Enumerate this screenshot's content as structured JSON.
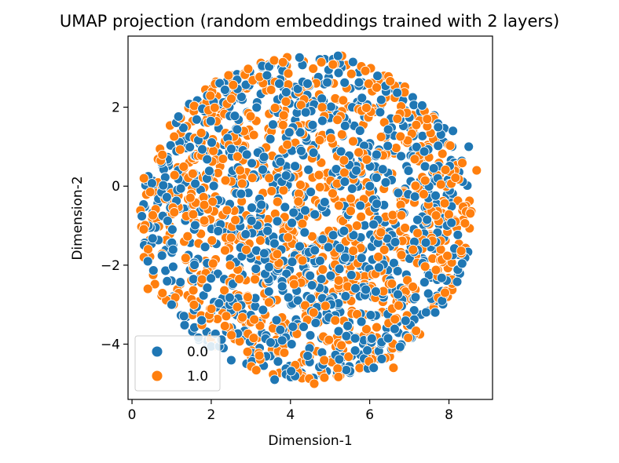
{
  "chart_data": {
    "type": "scatter",
    "title": "UMAP projection (random embeddings trained with 2 layers)",
    "xlabel": "Dimension-1",
    "ylabel": "Dimension-2",
    "xlim": [
      -0.1,
      9.1
    ],
    "ylim": [
      -5.4,
      3.8
    ],
    "xticks": [
      0,
      2,
      4,
      6,
      8
    ],
    "yticks": [
      2,
      0,
      -2,
      -4
    ],
    "grid": false,
    "legend_position": "lower-left",
    "disc": {
      "center": [
        4.4,
        -0.8
      ],
      "radius": 4.2,
      "n_per_series": 950
    },
    "series": [
      {
        "name": "0.0",
        "color": "#1f77b4"
      },
      {
        "name": "1.0",
        "color": "#ff7f0e"
      }
    ],
    "sample_points": [
      {
        "series": "1.0",
        "x": 8.7,
        "y": 0.4
      },
      {
        "series": "1.0",
        "x": 0.3,
        "y": -1.8
      },
      {
        "series": "1.0",
        "x": 0.3,
        "y": 0.2
      },
      {
        "series": "0.0",
        "x": 8.5,
        "y": 1.0
      },
      {
        "series": "0.0",
        "x": 8.1,
        "y": 1.4
      },
      {
        "series": "1.0",
        "x": 4.6,
        "y": -5.0
      },
      {
        "series": "0.0",
        "x": 3.6,
        "y": -4.9
      },
      {
        "series": "1.0",
        "x": 5.3,
        "y": 3.3
      },
      {
        "series": "0.0",
        "x": 5.2,
        "y": 3.3
      },
      {
        "series": "0.0",
        "x": 0.4,
        "y": -1.9
      },
      {
        "series": "1.0",
        "x": 0.4,
        "y": -2.6
      },
      {
        "series": "0.0",
        "x": 1.0,
        "y": -3.0
      },
      {
        "series": "1.0",
        "x": 7.9,
        "y": -2.7
      },
      {
        "series": "1.0",
        "x": 6.6,
        "y": -4.6
      },
      {
        "series": "0.0",
        "x": 6.1,
        "y": -4.6
      }
    ]
  }
}
